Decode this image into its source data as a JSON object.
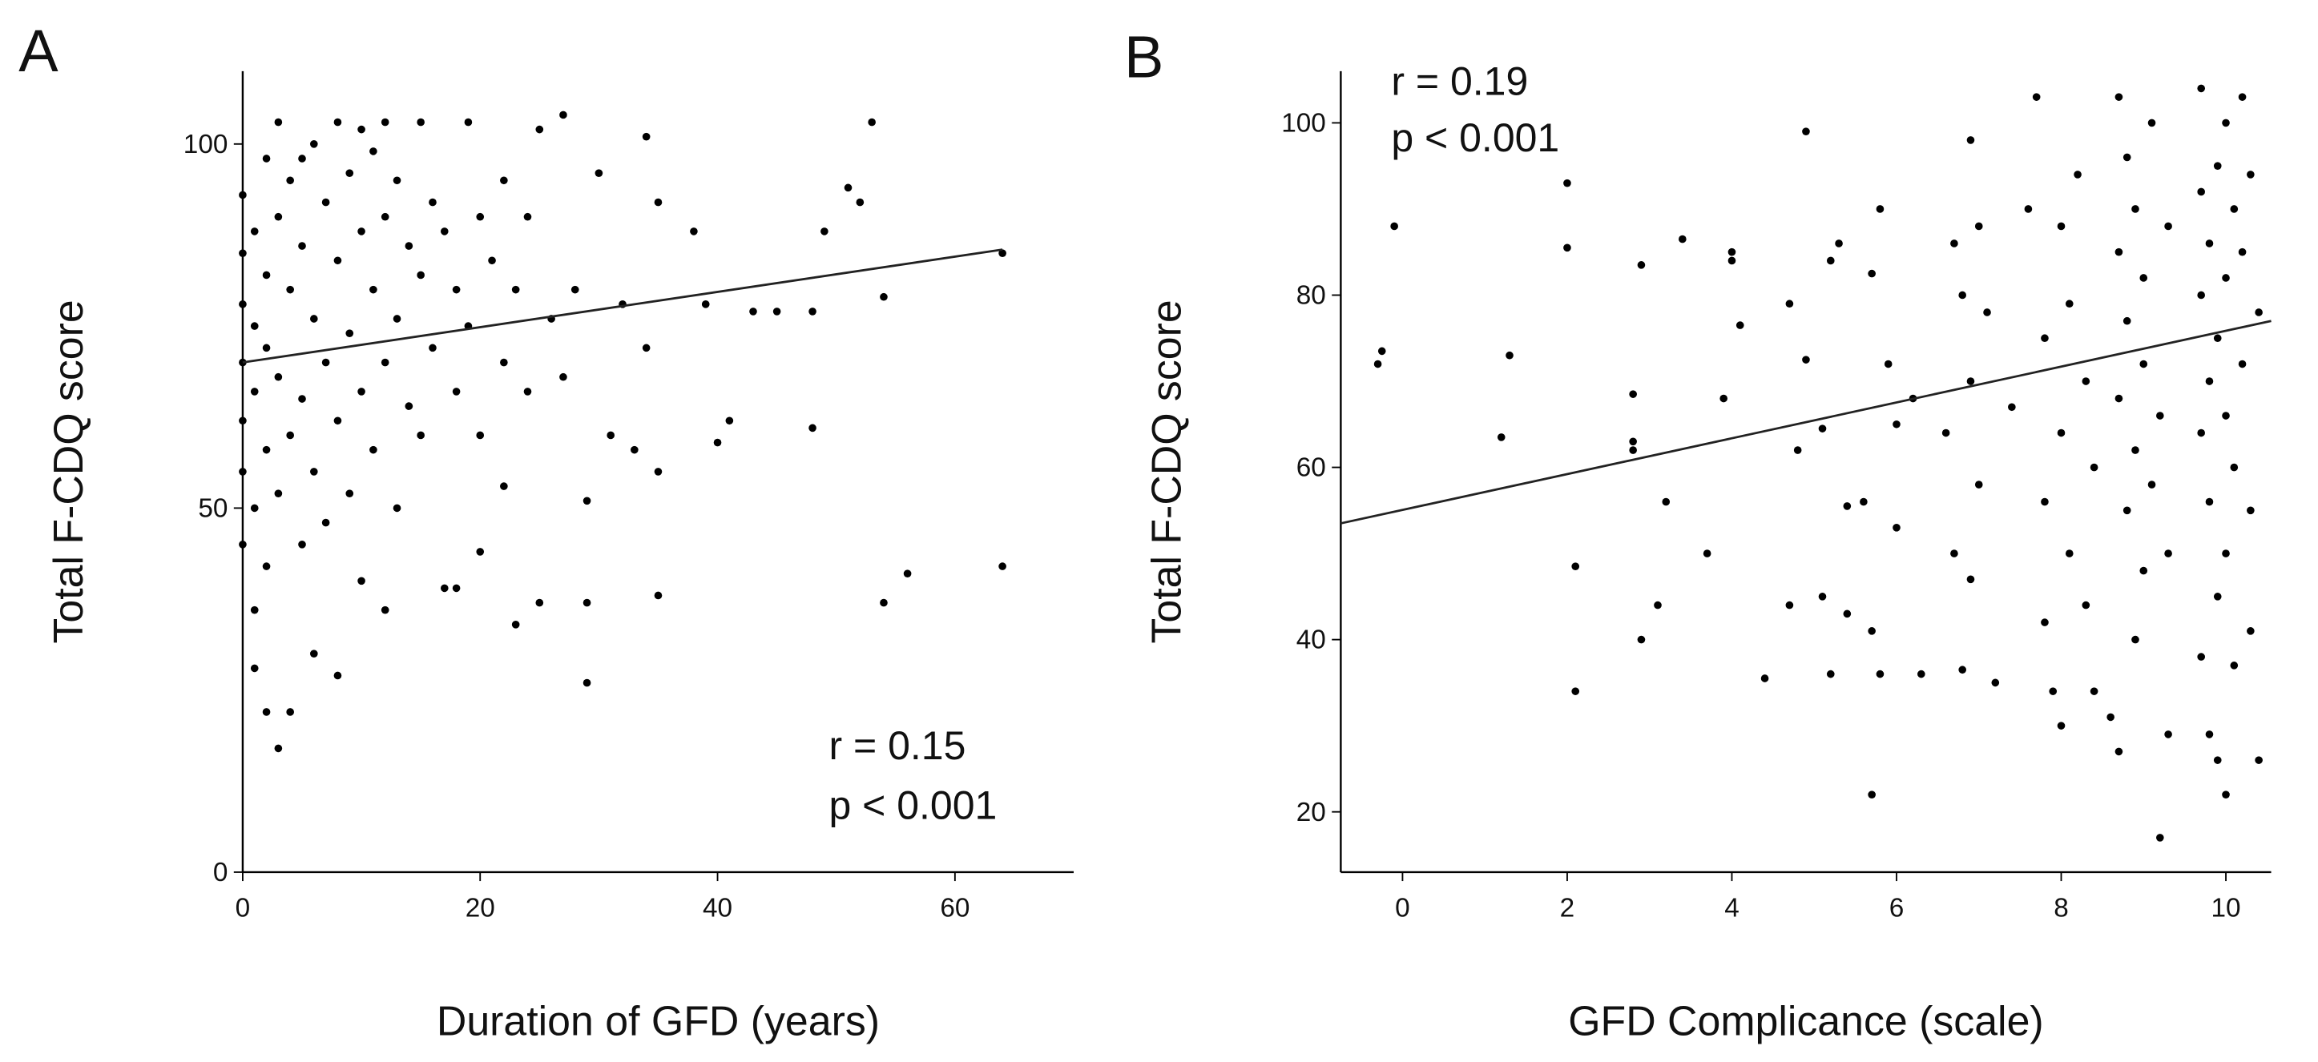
{
  "chart_data": [
    {
      "type": "scatter",
      "panel_label": "A",
      "x_label": "Duration of GFD (years)",
      "y_label": "Total F-CDQ score",
      "annotations": [
        "r = 0.15",
        "p < 0.001"
      ],
      "color": "#000000",
      "xlim": [
        0,
        70
      ],
      "ylim": [
        0,
        110
      ],
      "xticks": [
        0,
        20,
        40,
        60
      ],
      "yticks": [
        0,
        50,
        100
      ],
      "x": [
        0,
        0,
        0,
        0,
        0,
        0,
        0,
        1,
        1,
        1,
        1,
        1,
        1,
        2,
        2,
        2,
        2,
        2,
        2,
        3,
        3,
        3,
        3,
        3,
        4,
        4,
        4,
        4,
        5,
        5,
        5,
        5,
        6,
        6,
        6,
        6,
        7,
        7,
        7,
        8,
        8,
        8,
        8,
        9,
        9,
        9,
        10,
        10,
        10,
        10,
        11,
        11,
        11,
        12,
        12,
        12,
        12,
        13,
        13,
        13,
        14,
        14,
        15,
        15,
        15,
        16,
        16,
        17,
        17,
        18,
        18,
        18,
        19,
        19,
        20,
        20,
        20,
        21,
        22,
        22,
        22,
        23,
        23,
        24,
        24,
        25,
        25,
        26,
        27,
        27,
        28,
        29,
        29,
        29,
        30,
        31,
        32,
        33,
        34,
        34,
        35,
        35,
        35,
        38,
        39,
        40,
        41,
        43,
        45,
        48,
        48,
        49,
        51,
        52,
        53,
        54,
        54,
        56,
        64,
        64
      ],
      "values": [
        93,
        85,
        78,
        70,
        62,
        55,
        45,
        88,
        75,
        66,
        50,
        36,
        28,
        98,
        82,
        72,
        58,
        42,
        22,
        103,
        90,
        68,
        52,
        17,
        95,
        80,
        60,
        22,
        98,
        86,
        65,
        45,
        100,
        76,
        55,
        30,
        92,
        70,
        48,
        103,
        84,
        62,
        27,
        96,
        74,
        52,
        102,
        88,
        66,
        40,
        99,
        80,
        58,
        103,
        90,
        70,
        36,
        95,
        76,
        50,
        86,
        64,
        103,
        82,
        60,
        92,
        72,
        39,
        88,
        80,
        66,
        39,
        103,
        75,
        90,
        60,
        44,
        84,
        95,
        70,
        53,
        80,
        34,
        90,
        66,
        102,
        37,
        76,
        104,
        68,
        80,
        51,
        37,
        26,
        96,
        60,
        78,
        58,
        101,
        72,
        92,
        55,
        38,
        88,
        78,
        59,
        62,
        77,
        77,
        77,
        61,
        88,
        94,
        92,
        103,
        37,
        79,
        41,
        85,
        42
      ],
      "trend_line": {
        "x": [
          0,
          64
        ],
        "values": [
          70,
          85.5
        ]
      }
    },
    {
      "type": "scatter",
      "panel_label": "B",
      "x_label": "GFD Complicance (scale)",
      "y_label": "Total F-CDQ score",
      "annotations": [
        "r = 0.19",
        "p < 0.001"
      ],
      "color": "#000000",
      "xlim": [
        -0.75,
        10.55
      ],
      "ylim": [
        13,
        106
      ],
      "xticks": [
        0,
        2,
        4,
        6,
        8,
        10
      ],
      "yticks": [
        20,
        40,
        60,
        80,
        100
      ],
      "x": [
        -0.3,
        -0.25,
        -0.1,
        1.2,
        1.3,
        2,
        2,
        2.1,
        2.1,
        2.8,
        2.8,
        2.8,
        2.9,
        2.9,
        3.1,
        3.2,
        3.4,
        3.7,
        3.9,
        4,
        4,
        4.1,
        4.4,
        4.7,
        4.7,
        4.8,
        4.9,
        4.9,
        5.1,
        5.1,
        5.2,
        5.2,
        5.3,
        5.4,
        5.4,
        5.6,
        5.7,
        5.7,
        5.7,
        5.8,
        5.8,
        5.9,
        6,
        6,
        6.2,
        6.3,
        6.6,
        6.7,
        6.7,
        6.8,
        6.8,
        6.9,
        6.9,
        6.9,
        7,
        7,
        7.1,
        7.2,
        7.4,
        7.6,
        7.7,
        7.8,
        7.8,
        7.8,
        7.9,
        8,
        8,
        8,
        8.1,
        8.1,
        8.2,
        8.3,
        8.3,
        8.4,
        8.4,
        8.6,
        8.7,
        8.7,
        8.7,
        8.7,
        8.8,
        8.8,
        8.8,
        8.9,
        8.9,
        8.9,
        9,
        9,
        9,
        9.1,
        9.1,
        9.2,
        9.2,
        9.3,
        9.3,
        9.3,
        9.7,
        9.7,
        9.7,
        9.7,
        9.7,
        9.8,
        9.8,
        9.8,
        9.8,
        9.9,
        9.9,
        9.9,
        9.9,
        10,
        10,
        10,
        10,
        10,
        10.1,
        10.1,
        10.1,
        10.2,
        10.2,
        10.2,
        10.3,
        10.3,
        10.3,
        10.4,
        10.4
      ],
      "values": [
        72,
        73.5,
        88,
        63.5,
        73,
        85.5,
        93,
        48.5,
        34,
        62,
        63,
        68.5,
        40,
        83.5,
        44,
        56,
        86.5,
        50,
        68,
        84,
        85,
        76.5,
        35.5,
        79,
        44,
        62,
        99,
        72.5,
        64.5,
        45,
        84,
        36,
        86,
        55.5,
        43,
        56,
        82.5,
        41,
        22,
        90,
        36,
        72,
        53,
        65,
        68,
        36,
        64,
        86,
        50,
        80,
        36.5,
        98,
        70,
        47,
        88,
        58,
        78,
        35,
        67,
        90,
        103,
        75,
        56,
        42,
        34,
        88,
        64,
        30,
        79,
        50,
        94,
        70,
        44,
        60,
        34,
        31,
        103,
        85,
        68,
        27,
        96,
        77,
        55,
        90,
        62,
        40,
        82,
        72,
        48,
        100,
        58,
        66,
        17,
        88,
        50,
        29,
        104,
        92,
        80,
        64,
        38,
        86,
        70,
        56,
        29,
        95,
        75,
        45,
        26,
        100,
        82,
        66,
        50,
        22,
        90,
        60,
        37,
        103,
        85,
        72,
        94,
        55,
        41,
        78,
        26
      ],
      "trend_line": {
        "x": [
          -0.75,
          10.55
        ],
        "values": [
          53.5,
          77
        ]
      }
    }
  ]
}
